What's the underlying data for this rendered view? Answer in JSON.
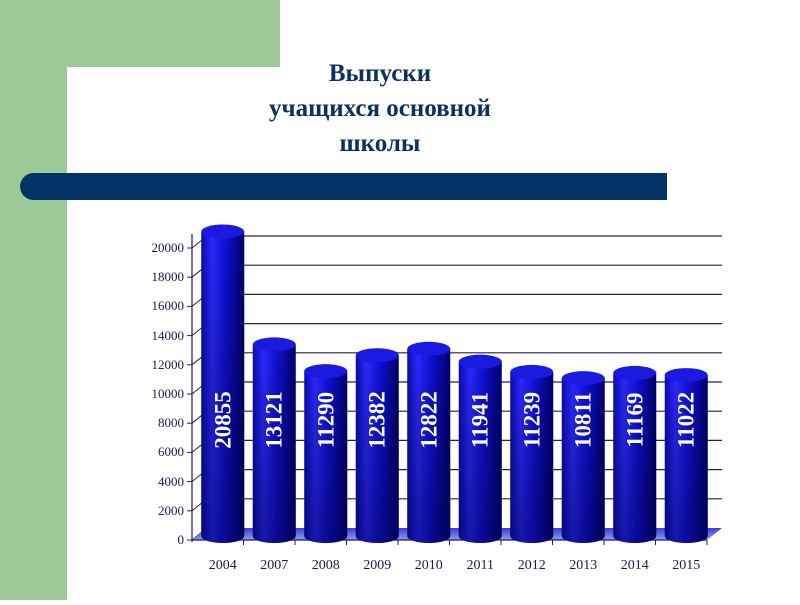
{
  "slide": {
    "title_lines": [
      "Выпуски",
      "учащихся основной",
      "школы"
    ],
    "colors": {
      "green": "#9ccb98",
      "navy": "#043366",
      "title": "#0c3160",
      "bar": "#1414d0",
      "bar_dark": "#000080"
    }
  },
  "chart_data": {
    "type": "bar",
    "title": "Выпуски учащихся основной школы",
    "style": "3d-cylinder",
    "categories": [
      "2004",
      "2007",
      "2008",
      "2009",
      "2010",
      "2011",
      "2012",
      "2013",
      "2014",
      "2015"
    ],
    "values": [
      20855,
      13121,
      11290,
      12382,
      12822,
      11941,
      11239,
      10811,
      11169,
      11022
    ],
    "data_labels": [
      "20855",
      "13121",
      "11290",
      "12382",
      "12822",
      "11941",
      "11239",
      "10811",
      "11169",
      "11022"
    ],
    "xlabel": "",
    "ylabel": "",
    "ylim": [
      0,
      20000
    ],
    "yticks": [
      "0",
      "2000",
      "4000",
      "6000",
      "8000",
      "10000",
      "12000",
      "14000",
      "16000",
      "18000",
      "20000"
    ],
    "grid": true,
    "legend": "none"
  }
}
